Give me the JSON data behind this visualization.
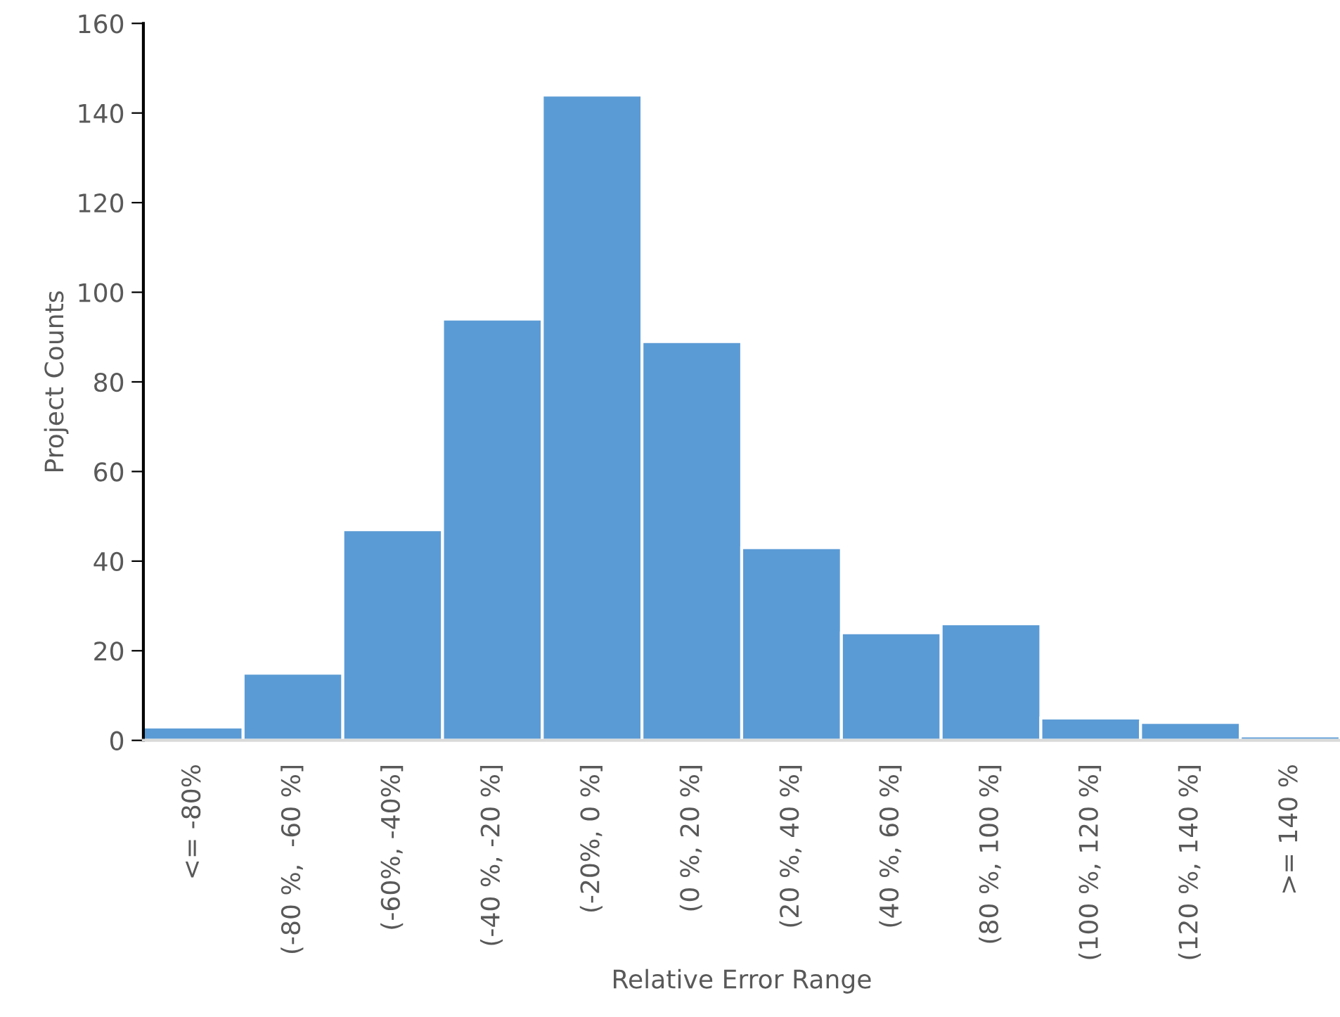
{
  "chart_data": {
    "type": "bar",
    "xlabel": "Relative Error Range",
    "ylabel": "Project Counts",
    "categories": [
      "<= -80%",
      "(-80 %,  -60 %]",
      "(-60%, -40%]",
      "(-40 %, -20 %]",
      "(-20%, 0 %]",
      "(0 %, 20 %]",
      "(20 %, 40 %]",
      "(40 %, 60 %]",
      "(80 %, 100 %]",
      "(100 %, 120 %]",
      "(120 %, 140 %]",
      ">= 140 %"
    ],
    "values": [
      3,
      15,
      47,
      94,
      144,
      89,
      43,
      24,
      26,
      5,
      4,
      1
    ],
    "color": "#5b9bd5",
    "ylim": [
      0,
      160
    ],
    "yticks": [
      0,
      20,
      40,
      60,
      80,
      100,
      120,
      140,
      160
    ],
    "grid": false,
    "legend": false
  }
}
